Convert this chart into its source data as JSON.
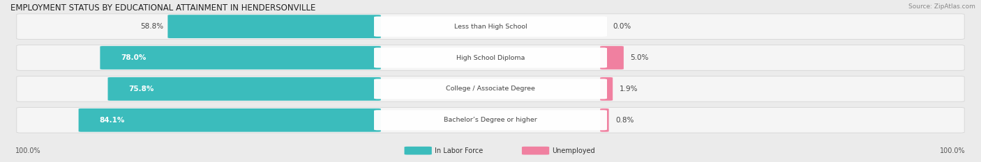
{
  "title": "EMPLOYMENT STATUS BY EDUCATIONAL ATTAINMENT IN HENDERSONVILLE",
  "source": "Source: ZipAtlas.com",
  "categories": [
    "Less than High School",
    "High School Diploma",
    "College / Associate Degree",
    "Bachelor’s Degree or higher"
  ],
  "in_labor_force": [
    58.8,
    78.0,
    75.8,
    84.1
  ],
  "unemployed": [
    0.0,
    5.0,
    1.9,
    0.8
  ],
  "bar_color_labor": "#3BBCBC",
  "bar_color_unemployed": "#F080A0",
  "bg_color": "#ebebeb",
  "row_bg_color": "#f5f5f5",
  "row_shadow_color": "#d0d0d0",
  "legend_labor_color": "#3BBCBC",
  "legend_unemployed_color": "#F080A0",
  "left_label": "100.0%",
  "right_label": "100.0%",
  "title_fontsize": 8.5,
  "label_fontsize": 7.5,
  "tick_fontsize": 7,
  "source_fontsize": 6.5,
  "label_inside_threshold": 65.0
}
